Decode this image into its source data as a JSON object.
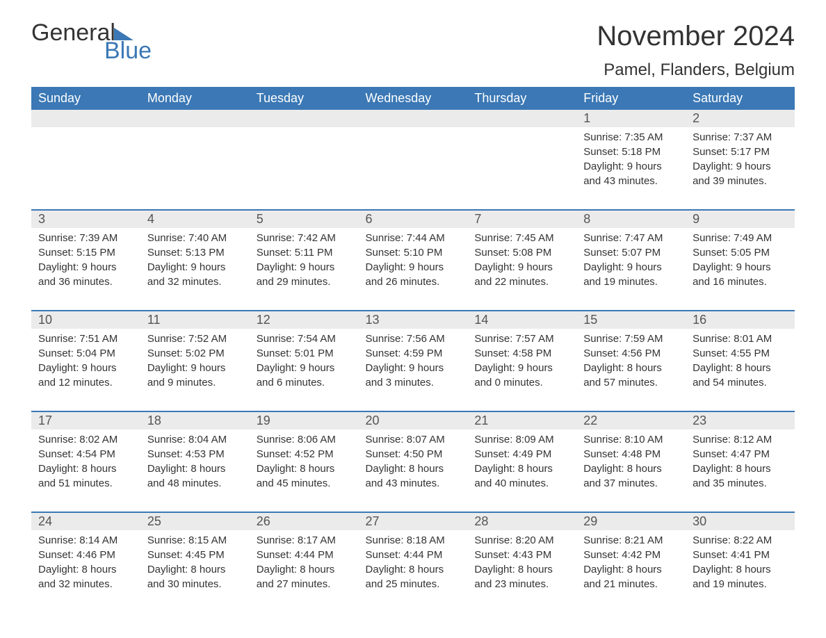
{
  "logo": {
    "text1": "General",
    "text2": "Blue"
  },
  "title": "November 2024",
  "location": "Pamel, Flanders, Belgium",
  "colors": {
    "header_bg": "#3b78b5",
    "header_text": "#ffffff",
    "daynum_bg": "#ebebeb",
    "daynum_text": "#545454",
    "body_text": "#333333",
    "border": "#3b78b5"
  },
  "weekdays": [
    "Sunday",
    "Monday",
    "Tuesday",
    "Wednesday",
    "Thursday",
    "Friday",
    "Saturday"
  ],
  "labels": {
    "sunrise": "Sunrise:",
    "sunset": "Sunset:",
    "daylight": "Daylight:"
  },
  "weeks": [
    [
      null,
      null,
      null,
      null,
      null,
      {
        "day": "1",
        "sunrise": "7:35 AM",
        "sunset": "5:18 PM",
        "daylight_h": "9 hours",
        "daylight_m": "and 43 minutes."
      },
      {
        "day": "2",
        "sunrise": "7:37 AM",
        "sunset": "5:17 PM",
        "daylight_h": "9 hours",
        "daylight_m": "and 39 minutes."
      }
    ],
    [
      {
        "day": "3",
        "sunrise": "7:39 AM",
        "sunset": "5:15 PM",
        "daylight_h": "9 hours",
        "daylight_m": "and 36 minutes."
      },
      {
        "day": "4",
        "sunrise": "7:40 AM",
        "sunset": "5:13 PM",
        "daylight_h": "9 hours",
        "daylight_m": "and 32 minutes."
      },
      {
        "day": "5",
        "sunrise": "7:42 AM",
        "sunset": "5:11 PM",
        "daylight_h": "9 hours",
        "daylight_m": "and 29 minutes."
      },
      {
        "day": "6",
        "sunrise": "7:44 AM",
        "sunset": "5:10 PM",
        "daylight_h": "9 hours",
        "daylight_m": "and 26 minutes."
      },
      {
        "day": "7",
        "sunrise": "7:45 AM",
        "sunset": "5:08 PM",
        "daylight_h": "9 hours",
        "daylight_m": "and 22 minutes."
      },
      {
        "day": "8",
        "sunrise": "7:47 AM",
        "sunset": "5:07 PM",
        "daylight_h": "9 hours",
        "daylight_m": "and 19 minutes."
      },
      {
        "day": "9",
        "sunrise": "7:49 AM",
        "sunset": "5:05 PM",
        "daylight_h": "9 hours",
        "daylight_m": "and 16 minutes."
      }
    ],
    [
      {
        "day": "10",
        "sunrise": "7:51 AM",
        "sunset": "5:04 PM",
        "daylight_h": "9 hours",
        "daylight_m": "and 12 minutes."
      },
      {
        "day": "11",
        "sunrise": "7:52 AM",
        "sunset": "5:02 PM",
        "daylight_h": "9 hours",
        "daylight_m": "and 9 minutes."
      },
      {
        "day": "12",
        "sunrise": "7:54 AM",
        "sunset": "5:01 PM",
        "daylight_h": "9 hours",
        "daylight_m": "and 6 minutes."
      },
      {
        "day": "13",
        "sunrise": "7:56 AM",
        "sunset": "4:59 PM",
        "daylight_h": "9 hours",
        "daylight_m": "and 3 minutes."
      },
      {
        "day": "14",
        "sunrise": "7:57 AM",
        "sunset": "4:58 PM",
        "daylight_h": "9 hours",
        "daylight_m": "and 0 minutes."
      },
      {
        "day": "15",
        "sunrise": "7:59 AM",
        "sunset": "4:56 PM",
        "daylight_h": "8 hours",
        "daylight_m": "and 57 minutes."
      },
      {
        "day": "16",
        "sunrise": "8:01 AM",
        "sunset": "4:55 PM",
        "daylight_h": "8 hours",
        "daylight_m": "and 54 minutes."
      }
    ],
    [
      {
        "day": "17",
        "sunrise": "8:02 AM",
        "sunset": "4:54 PM",
        "daylight_h": "8 hours",
        "daylight_m": "and 51 minutes."
      },
      {
        "day": "18",
        "sunrise": "8:04 AM",
        "sunset": "4:53 PM",
        "daylight_h": "8 hours",
        "daylight_m": "and 48 minutes."
      },
      {
        "day": "19",
        "sunrise": "8:06 AM",
        "sunset": "4:52 PM",
        "daylight_h": "8 hours",
        "daylight_m": "and 45 minutes."
      },
      {
        "day": "20",
        "sunrise": "8:07 AM",
        "sunset": "4:50 PM",
        "daylight_h": "8 hours",
        "daylight_m": "and 43 minutes."
      },
      {
        "day": "21",
        "sunrise": "8:09 AM",
        "sunset": "4:49 PM",
        "daylight_h": "8 hours",
        "daylight_m": "and 40 minutes."
      },
      {
        "day": "22",
        "sunrise": "8:10 AM",
        "sunset": "4:48 PM",
        "daylight_h": "8 hours",
        "daylight_m": "and 37 minutes."
      },
      {
        "day": "23",
        "sunrise": "8:12 AM",
        "sunset": "4:47 PM",
        "daylight_h": "8 hours",
        "daylight_m": "and 35 minutes."
      }
    ],
    [
      {
        "day": "24",
        "sunrise": "8:14 AM",
        "sunset": "4:46 PM",
        "daylight_h": "8 hours",
        "daylight_m": "and 32 minutes."
      },
      {
        "day": "25",
        "sunrise": "8:15 AM",
        "sunset": "4:45 PM",
        "daylight_h": "8 hours",
        "daylight_m": "and 30 minutes."
      },
      {
        "day": "26",
        "sunrise": "8:17 AM",
        "sunset": "4:44 PM",
        "daylight_h": "8 hours",
        "daylight_m": "and 27 minutes."
      },
      {
        "day": "27",
        "sunrise": "8:18 AM",
        "sunset": "4:44 PM",
        "daylight_h": "8 hours",
        "daylight_m": "and 25 minutes."
      },
      {
        "day": "28",
        "sunrise": "8:20 AM",
        "sunset": "4:43 PM",
        "daylight_h": "8 hours",
        "daylight_m": "and 23 minutes."
      },
      {
        "day": "29",
        "sunrise": "8:21 AM",
        "sunset": "4:42 PM",
        "daylight_h": "8 hours",
        "daylight_m": "and 21 minutes."
      },
      {
        "day": "30",
        "sunrise": "8:22 AM",
        "sunset": "4:41 PM",
        "daylight_h": "8 hours",
        "daylight_m": "and 19 minutes."
      }
    ]
  ]
}
